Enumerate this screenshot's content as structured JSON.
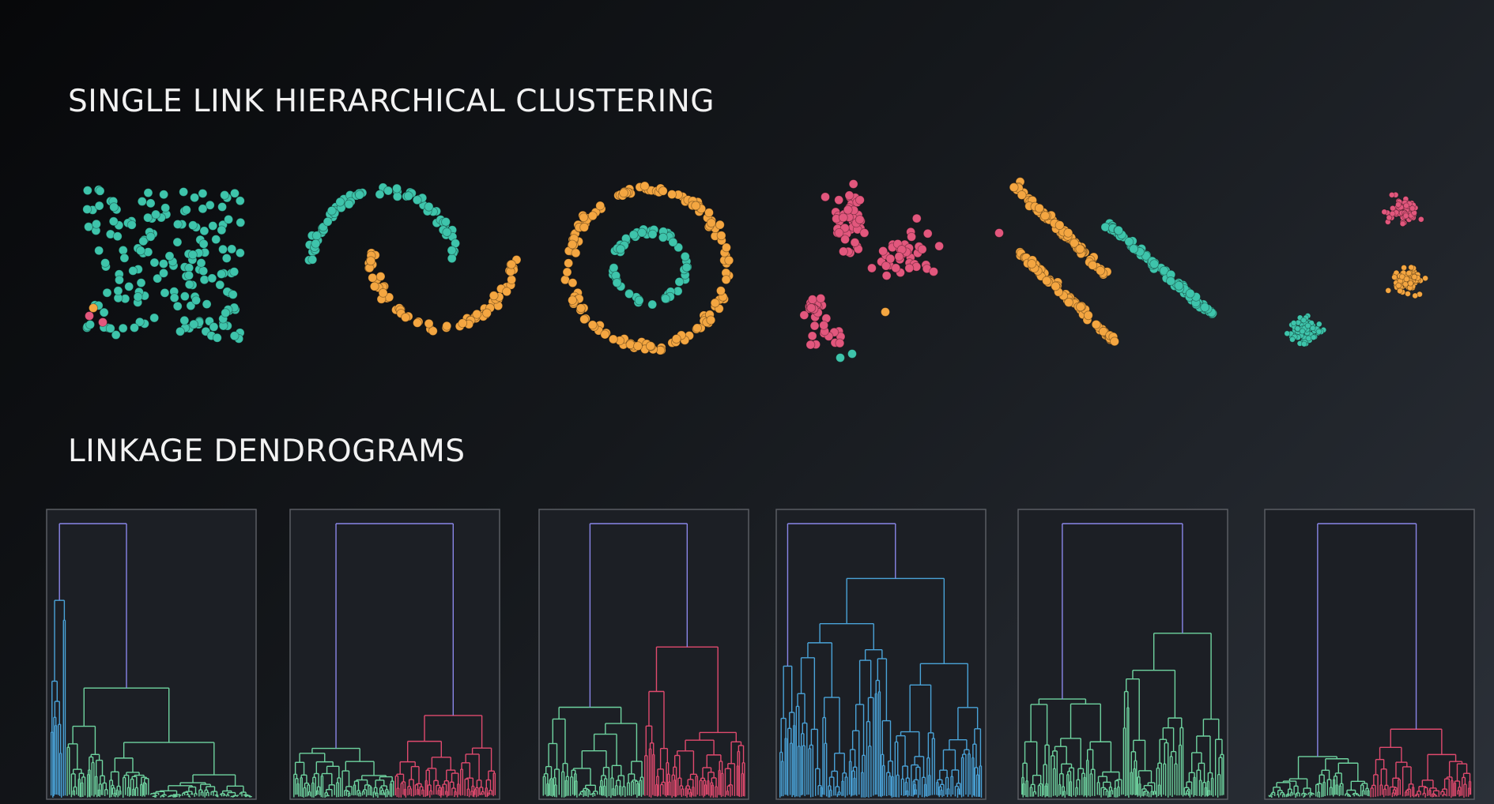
{
  "header": {
    "title": "SINGLE LINK HIERARCHICAL CLUSTERING"
  },
  "section": {
    "title": "LINKAGE DENDROGRAMS"
  }
}
